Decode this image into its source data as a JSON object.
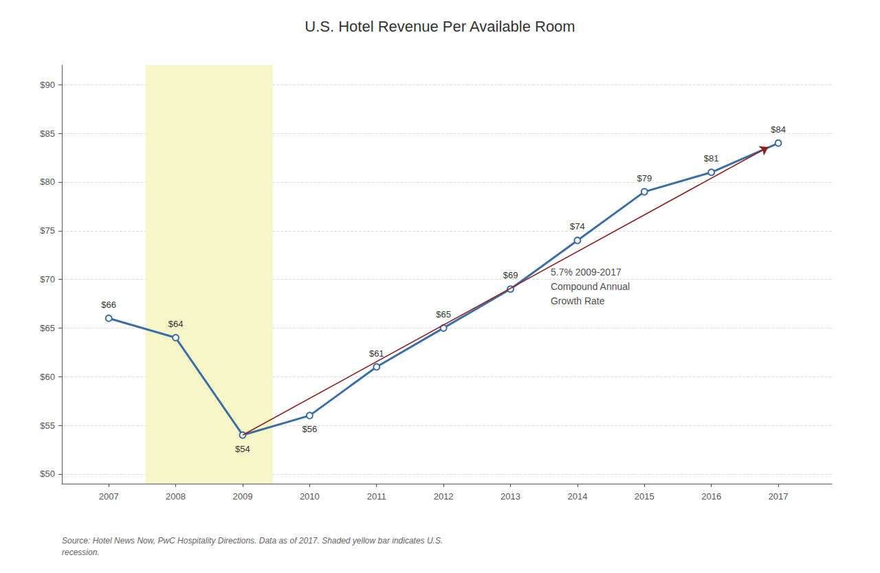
{
  "chart_data": {
    "type": "line",
    "title": "U.S. Hotel Revenue Per Available Room",
    "x": [
      2007,
      2008,
      2009,
      2010,
      2011,
      2012,
      2013,
      2014,
      2015,
      2016,
      2017
    ],
    "values": [
      66,
      64,
      54,
      56,
      61,
      65,
      69,
      74,
      79,
      81,
      84
    ],
    "value_labels": [
      "$66",
      "$64",
      "$54",
      "$56",
      "$61",
      "$65",
      "$69",
      "$74",
      "$79",
      "$81",
      "$84"
    ],
    "data_labels": true,
    "color": "#3A6EA5",
    "marker": "circle",
    "xlim": [
      2006.3,
      2017.8
    ],
    "xticks": [
      2007,
      2008,
      2009,
      2010,
      2011,
      2012,
      2013,
      2014,
      2015,
      2016,
      2017
    ],
    "ylim": [
      49,
      92
    ],
    "yticks": [
      {
        "value": 50,
        "label": "$50"
      },
      {
        "value": 55,
        "label": "$55"
      },
      {
        "value": 60,
        "label": "$60"
      },
      {
        "value": 65,
        "label": "$65"
      },
      {
        "value": 70,
        "label": "$70"
      },
      {
        "value": 75,
        "label": "$75"
      },
      {
        "value": 80,
        "label": "$80"
      },
      {
        "value": 85,
        "label": "$85"
      },
      {
        "value": 90,
        "label": "$90"
      }
    ],
    "grid": true,
    "shaded_spans": [
      {
        "x0": 2007.55,
        "x1": 2009.45,
        "color": "#F7F6C8"
      }
    ],
    "arrows": [
      {
        "x0": 2009,
        "y0": 54,
        "x1": 2016.85,
        "y1": 83.6,
        "color": "#8B2020"
      }
    ],
    "annotations": [
      {
        "text": "5.7% 2009-2017\nCompound Annual\nGrowth Rate",
        "x": 2013.6,
        "y": 71.5
      }
    ],
    "source": "Source: Hotel News Now, PwC Hospitality Directions. Data as of 2017. Shaded yellow bar indicates U.S.\nrecession."
  }
}
